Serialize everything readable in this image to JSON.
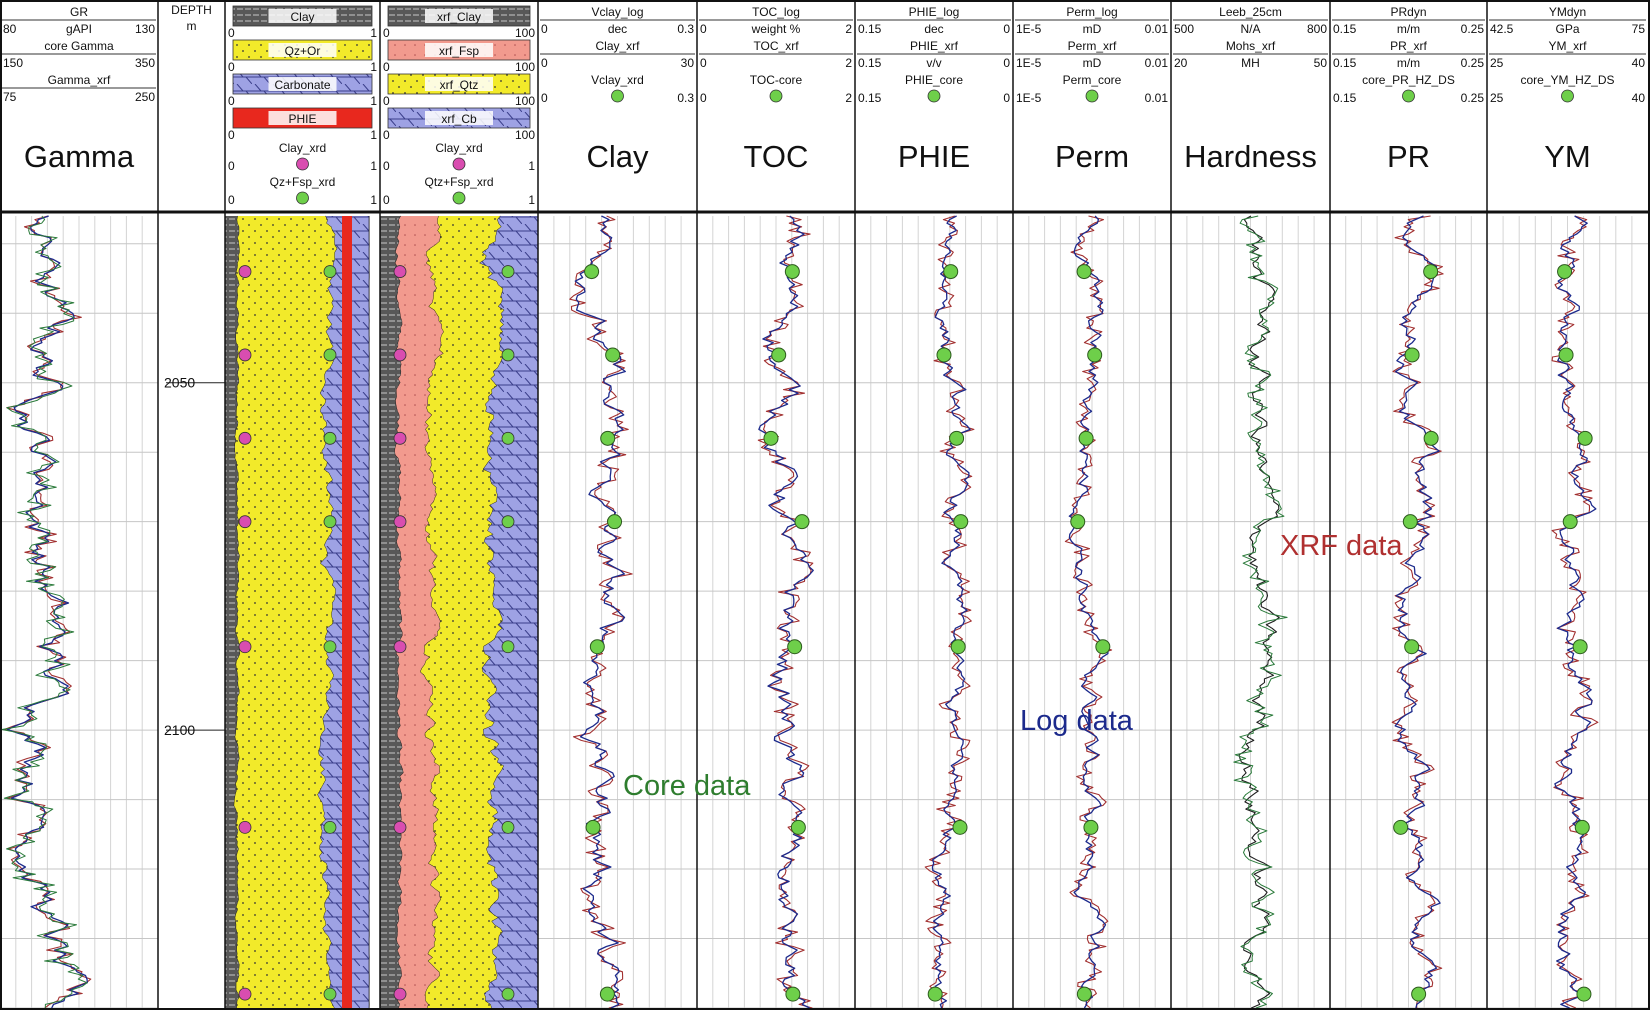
{
  "chart_data": {
    "type": "line",
    "depth_axis": {
      "label": "DEPTH",
      "unit": "m",
      "range": [
        2026,
        2140
      ],
      "ticks": [
        2050,
        2100
      ],
      "tick_labels": [
        "2050",
        "2100"
      ]
    },
    "tracks": [
      {
        "title": "Gamma",
        "headers": [
          {
            "name": "GR",
            "min": "80",
            "unit": "gAPI",
            "max": "130"
          },
          {
            "name": "core Gamma",
            "min": "150",
            "unit": "",
            "max": "350"
          },
          {
            "name": "Gamma_xrf",
            "min": "75",
            "unit": "",
            "max": "250"
          }
        ]
      },
      {
        "title": "",
        "headers": [
          {
            "name": "Clay",
            "min": "0",
            "unit": "",
            "max": "1",
            "fill": "clay"
          },
          {
            "name": "Qz+Or",
            "min": "0",
            "unit": "",
            "max": "1",
            "fill": "quartz"
          },
          {
            "name": "Carbonate",
            "min": "0",
            "unit": "",
            "max": "1",
            "fill": "carbonate"
          },
          {
            "name": "PHIE",
            "min": "0",
            "unit": "",
            "max": "1",
            "fill": "phie"
          },
          {
            "name": "Clay_xrd",
            "min": "0",
            "unit": "",
            "max": "1",
            "marker": "magenta"
          },
          {
            "name": "Qz+Fsp_xrd",
            "min": "0",
            "unit": "",
            "max": "1",
            "marker": "green"
          }
        ]
      },
      {
        "title": "",
        "headers": [
          {
            "name": "xrf_Clay",
            "min": "0",
            "unit": "",
            "max": "100",
            "fill": "clay"
          },
          {
            "name": "xrf_Fsp",
            "min": "0",
            "unit": "",
            "max": "100",
            "fill": "feldspar"
          },
          {
            "name": "xrf_Qtz",
            "min": "0",
            "unit": "",
            "max": "100",
            "fill": "quartz"
          },
          {
            "name": "xrf_Cb",
            "min": "0",
            "unit": "",
            "max": "100",
            "fill": "carbonate"
          },
          {
            "name": "Clay_xrd",
            "min": "0",
            "unit": "",
            "max": "1",
            "marker": "magenta"
          },
          {
            "name": "Qtz+Fsp_xrd",
            "min": "0",
            "unit": "",
            "max": "1",
            "marker": "green"
          }
        ]
      },
      {
        "title": "Clay",
        "headers": [
          {
            "name": "Vclay_log",
            "min": "0",
            "unit": "dec",
            "max": "0.3"
          },
          {
            "name": "Clay_xrf",
            "min": "0",
            "unit": "",
            "max": "30"
          },
          {
            "name": "Vclay_xrd",
            "min": "0",
            "unit": "",
            "max": "0.3",
            "marker": "green"
          }
        ]
      },
      {
        "title": "TOC",
        "headers": [
          {
            "name": "TOC_log",
            "min": "0",
            "unit": "weight %",
            "max": "2"
          },
          {
            "name": "TOC_xrf",
            "min": "0",
            "unit": "",
            "max": "2"
          },
          {
            "name": "TOC-core",
            "min": "0",
            "unit": "",
            "max": "2",
            "marker": "green"
          }
        ]
      },
      {
        "title": "PHIE",
        "headers": [
          {
            "name": "PHIE_log",
            "min": "0.15",
            "unit": "dec",
            "max": "0"
          },
          {
            "name": "PHIE_xrf",
            "min": "0.15",
            "unit": "v/v",
            "max": "0"
          },
          {
            "name": "PHIE_core",
            "min": "0.15",
            "unit": "",
            "max": "0",
            "marker": "green"
          }
        ]
      },
      {
        "title": "Perm",
        "headers": [
          {
            "name": "Perm_log",
            "min": "1E-5",
            "unit": "mD",
            "max": "0.01"
          },
          {
            "name": "Perm_xrf",
            "min": "1E-5",
            "unit": "mD",
            "max": "0.01"
          },
          {
            "name": "Perm_core",
            "min": "1E-5",
            "unit": "",
            "max": "0.01",
            "marker": "green"
          }
        ]
      },
      {
        "title": "Hardness",
        "headers": [
          {
            "name": "Leeb_25cm",
            "min": "500",
            "unit": "N/A",
            "max": "800"
          },
          {
            "name": "Mohs_xrf",
            "min": "20",
            "unit": "MH",
            "max": "50"
          }
        ]
      },
      {
        "title": "PR",
        "headers": [
          {
            "name": "PRdyn",
            "min": "0.15",
            "unit": "m/m",
            "max": "0.25"
          },
          {
            "name": "PR_xrf",
            "min": "0.15",
            "unit": "m/m",
            "max": "0.25"
          },
          {
            "name": "core_PR_HZ_DS",
            "min": "0.15",
            "unit": "",
            "max": "0.25",
            "marker": "green"
          }
        ]
      },
      {
        "title": "YM",
        "headers": [
          {
            "name": "YMdyn",
            "min": "42.5",
            "unit": "GPa",
            "max": "75"
          },
          {
            "name": "YM_xrf",
            "min": "25",
            "unit": "",
            "max": "40"
          },
          {
            "name": "core_YM_HZ_DS",
            "min": "25",
            "unit": "",
            "max": "40",
            "marker": "green"
          }
        ]
      }
    ],
    "annotations": [
      {
        "text": "XRF data",
        "color": "#b03030"
      },
      {
        "text": "Log data",
        "color": "#1c2a8c"
      },
      {
        "text": "Core data",
        "color": "#2e7d2e"
      }
    ],
    "core_sample_depths": [
      2034,
      2046,
      2058,
      2070,
      2088,
      2114,
      2138
    ]
  },
  "colors": {
    "log": "#1c2a8c",
    "xrf": "#a23030",
    "core": "#6ecf4a",
    "xrd": "#d94db0",
    "quartz": "#f2ea2a",
    "feldspar": "#f29a8e",
    "carbonate": "#9ea2e4",
    "clay": "#555555",
    "phie": "#e8281e"
  }
}
